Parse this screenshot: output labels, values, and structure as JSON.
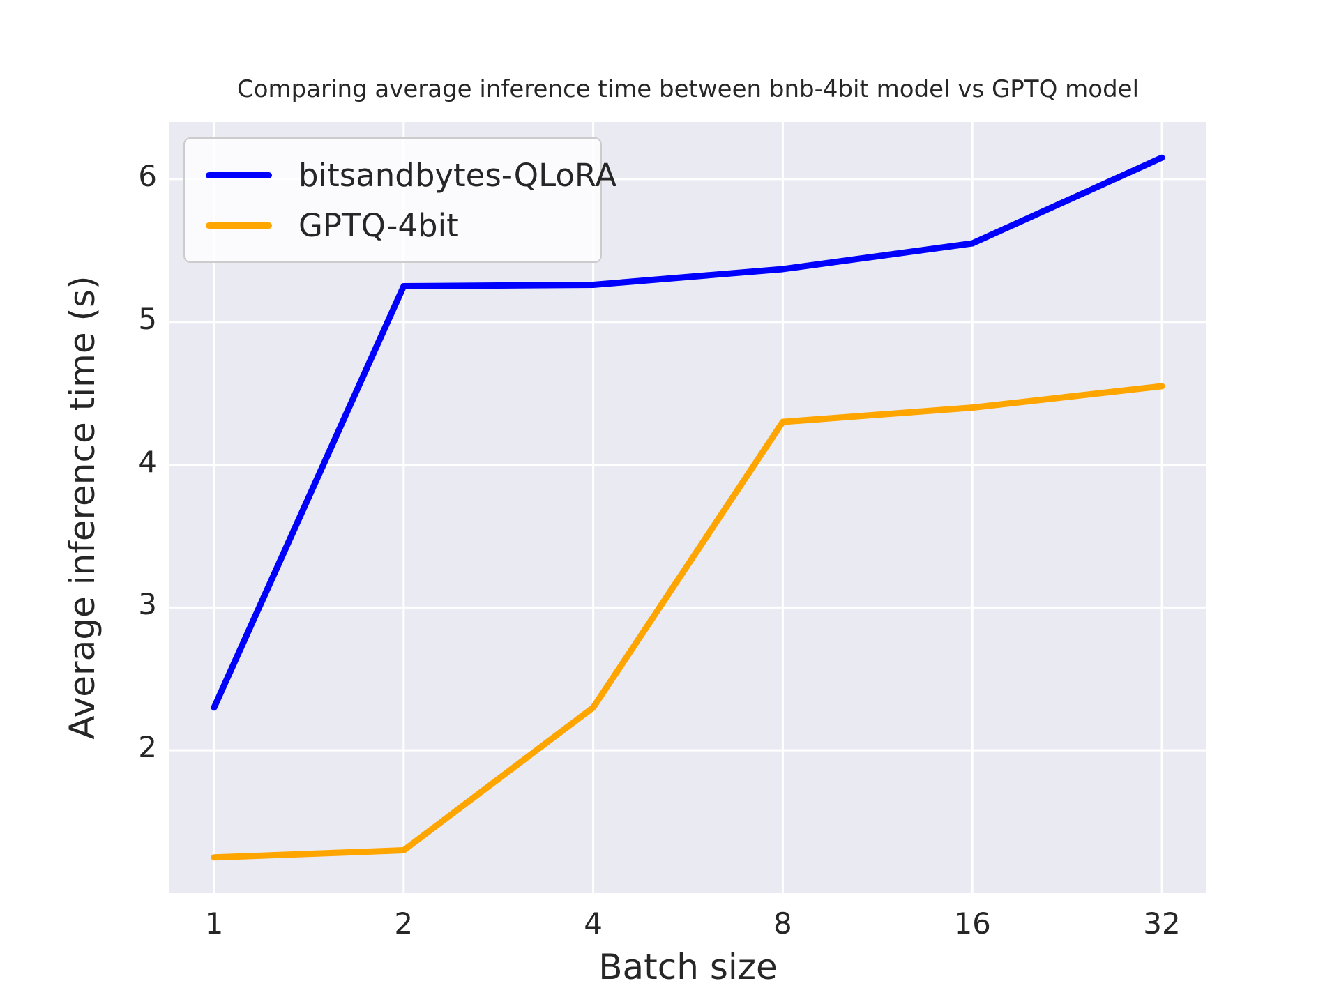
{
  "chart": {
    "title": "Comparing average inference time between bnb-4bit model vs GPTQ model",
    "xlabel": "Batch size",
    "ylabel": "Average inference time (s)"
  },
  "chart_data": {
    "type": "line",
    "title": "Comparing average inference time between bnb-4bit model vs GPTQ model",
    "xlabel": "Batch size",
    "ylabel": "Average inference time (s)",
    "x_scale": "log2-categorical",
    "categories": [
      1,
      2,
      4,
      8,
      16,
      32
    ],
    "series": [
      {
        "name": "bitsandbytes-QLoRA",
        "color": "#0000ff",
        "values": [
          2.3,
          5.25,
          5.26,
          5.37,
          5.55,
          6.15
        ]
      },
      {
        "name": "GPTQ-4bit",
        "color": "#ffa500",
        "values": [
          1.25,
          1.3,
          2.3,
          4.3,
          4.4,
          4.55
        ]
      }
    ],
    "y_ticks": [
      2,
      3,
      4,
      5,
      6
    ],
    "ylim": [
      1.0,
      6.4
    ],
    "grid": true,
    "gridline_color": "#ffffff",
    "axes_background": "#eaeaf2",
    "legend_position": "upper left",
    "text_color": "#262626"
  }
}
